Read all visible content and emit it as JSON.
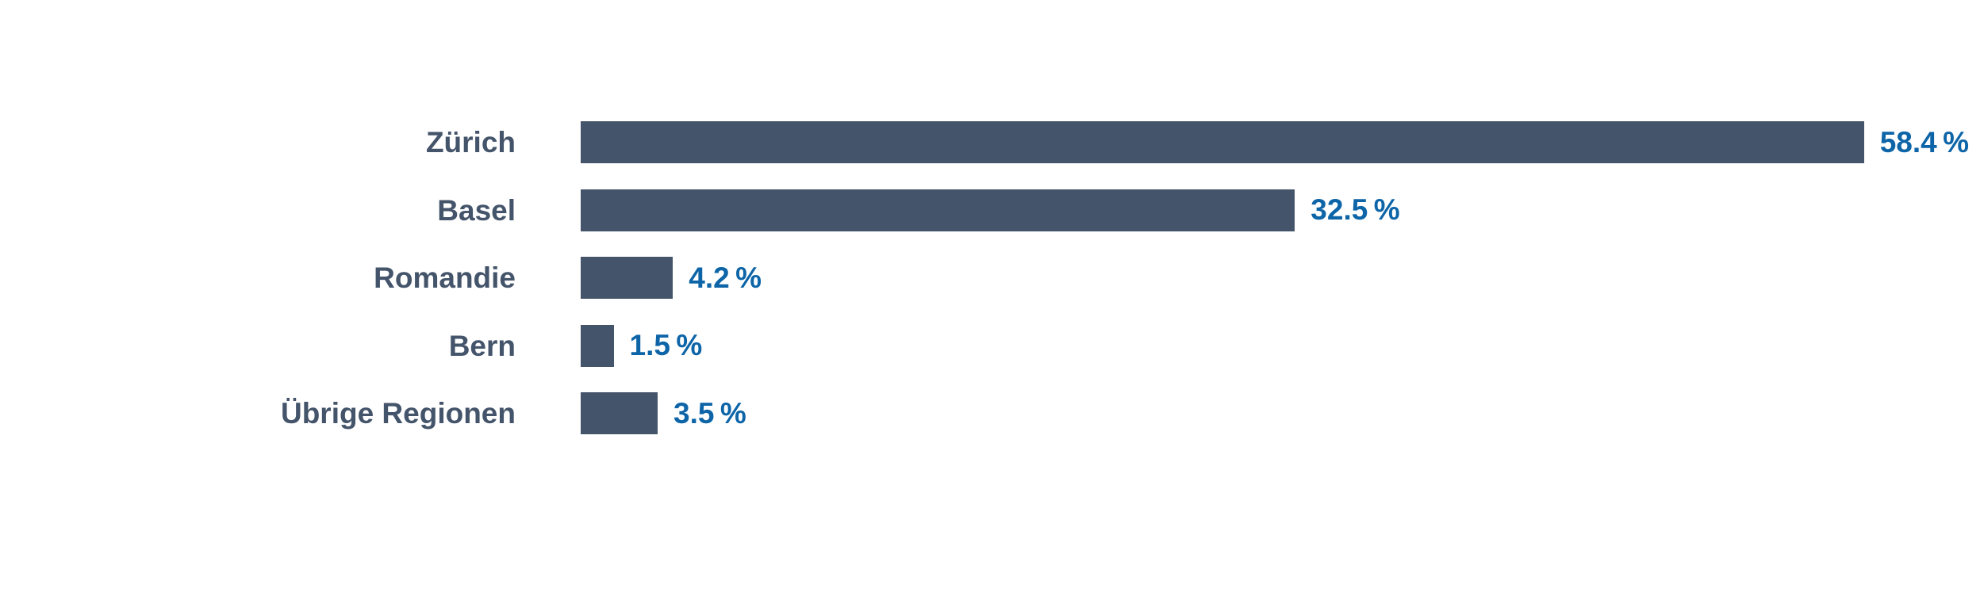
{
  "chart_data": {
    "type": "bar",
    "orientation": "horizontal",
    "categories": [
      "Zürich",
      "Basel",
      "Romandie",
      "Bern",
      "Übrige Regionen"
    ],
    "values": [
      58.4,
      32.5,
      4.2,
      1.5,
      3.5
    ],
    "value_labels": [
      "58.4 %",
      "32.5 %",
      "4.2 %",
      "1.5 %",
      "3.5 %"
    ],
    "unit": "%",
    "title": "",
    "xlabel": "",
    "ylabel": "",
    "xlim": [
      0,
      58.4
    ],
    "layout": {
      "gridlines": false,
      "axes_visible": false,
      "legend": "none",
      "data_labels": "outside-end",
      "category_labels": "right-aligned"
    },
    "colors": {
      "bar": "#44546A",
      "category_label": "#44546A",
      "value_label": "#0D65A8",
      "background": "#FFFFFF"
    }
  }
}
